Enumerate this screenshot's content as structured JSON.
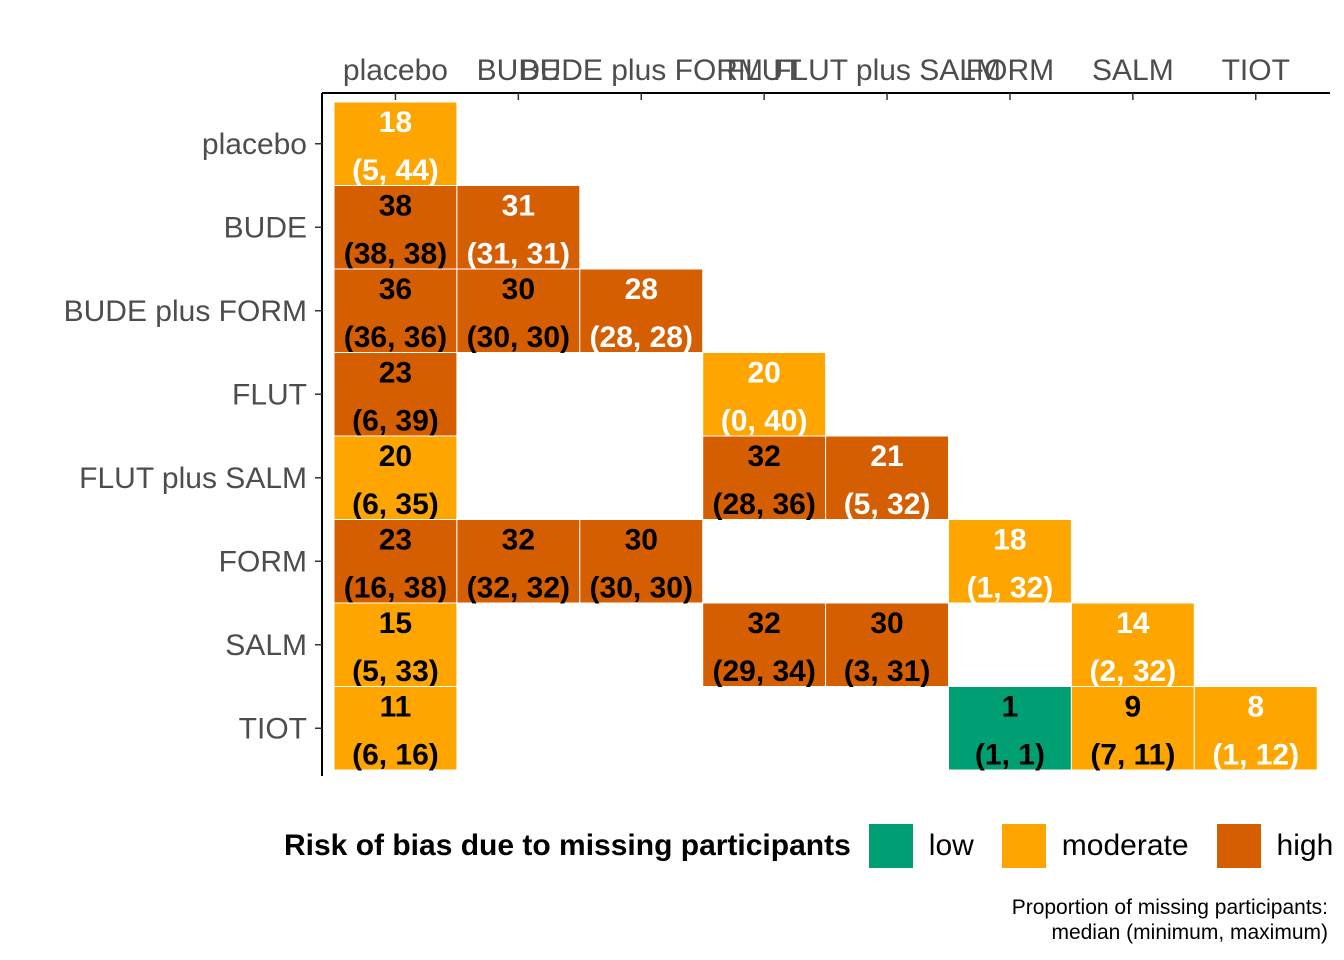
{
  "chart_data": {
    "type": "heatmap",
    "treatments": [
      "placebo",
      "BUDE",
      "BUDE plus FORM",
      "FLUT",
      "FLUT plus SALM",
      "FORM",
      "SALM",
      "TIOT"
    ],
    "cells": [
      {
        "row": "placebo",
        "col": "placebo",
        "median": "18",
        "range": "(5, 44)",
        "risk": "moderate"
      },
      {
        "row": "BUDE",
        "col": "placebo",
        "median": "38",
        "range": "(38, 38)",
        "risk": "high"
      },
      {
        "row": "BUDE",
        "col": "BUDE",
        "median": "31",
        "range": "(31, 31)",
        "risk": "high"
      },
      {
        "row": "BUDE plus FORM",
        "col": "placebo",
        "median": "36",
        "range": "(36, 36)",
        "risk": "high"
      },
      {
        "row": "BUDE plus FORM",
        "col": "BUDE",
        "median": "30",
        "range": "(30, 30)",
        "risk": "high"
      },
      {
        "row": "BUDE plus FORM",
        "col": "BUDE plus FORM",
        "median": "28",
        "range": "(28, 28)",
        "risk": "high"
      },
      {
        "row": "FLUT",
        "col": "placebo",
        "median": "23",
        "range": "(6, 39)",
        "risk": "high"
      },
      {
        "row": "FLUT",
        "col": "FLUT",
        "median": "20",
        "range": "(0, 40)",
        "risk": "moderate"
      },
      {
        "row": "FLUT plus SALM",
        "col": "placebo",
        "median": "20",
        "range": "(6, 35)",
        "risk": "moderate"
      },
      {
        "row": "FLUT plus SALM",
        "col": "FLUT",
        "median": "32",
        "range": "(28, 36)",
        "risk": "high"
      },
      {
        "row": "FLUT plus SALM",
        "col": "FLUT plus SALM",
        "median": "21",
        "range": "(5, 32)",
        "risk": "high"
      },
      {
        "row": "FORM",
        "col": "placebo",
        "median": "23",
        "range": "(16, 38)",
        "risk": "high"
      },
      {
        "row": "FORM",
        "col": "BUDE",
        "median": "32",
        "range": "(32, 32)",
        "risk": "high"
      },
      {
        "row": "FORM",
        "col": "BUDE plus FORM",
        "median": "30",
        "range": "(30, 30)",
        "risk": "high"
      },
      {
        "row": "FORM",
        "col": "FORM",
        "median": "18",
        "range": "(1, 32)",
        "risk": "moderate"
      },
      {
        "row": "SALM",
        "col": "placebo",
        "median": "15",
        "range": "(5, 33)",
        "risk": "moderate"
      },
      {
        "row": "SALM",
        "col": "FLUT",
        "median": "32",
        "range": "(29, 34)",
        "risk": "high"
      },
      {
        "row": "SALM",
        "col": "FLUT plus SALM",
        "median": "30",
        "range": "(3, 31)",
        "risk": "high"
      },
      {
        "row": "SALM",
        "col": "SALM",
        "median": "14",
        "range": "(2, 32)",
        "risk": "moderate"
      },
      {
        "row": "TIOT",
        "col": "placebo",
        "median": "11",
        "range": "(6, 16)",
        "risk": "moderate"
      },
      {
        "row": "TIOT",
        "col": "FORM",
        "median": "1",
        "range": "(1, 1)",
        "risk": "low"
      },
      {
        "row": "TIOT",
        "col": "SALM",
        "median": "9",
        "range": "(7, 11)",
        "risk": "moderate"
      },
      {
        "row": "TIOT",
        "col": "TIOT",
        "median": "8",
        "range": "(1, 12)",
        "risk": "moderate"
      }
    ],
    "legend": {
      "title": "Risk of bias due to missing participants",
      "position": "bottom",
      "items": [
        {
          "key": "low",
          "label": "low",
          "color": "#009E73"
        },
        {
          "key": "moderate",
          "label": "moderate",
          "color": "#FFA500"
        },
        {
          "key": "high",
          "label": "high",
          "color": "#D55E00"
        }
      ]
    },
    "caption_lines": [
      "Proportion of missing participants:",
      "median (minimum, maximum)"
    ],
    "diagonal_text_color": "#ffffff",
    "offdiagonal_text_color": "#000000",
    "grid": false
  }
}
